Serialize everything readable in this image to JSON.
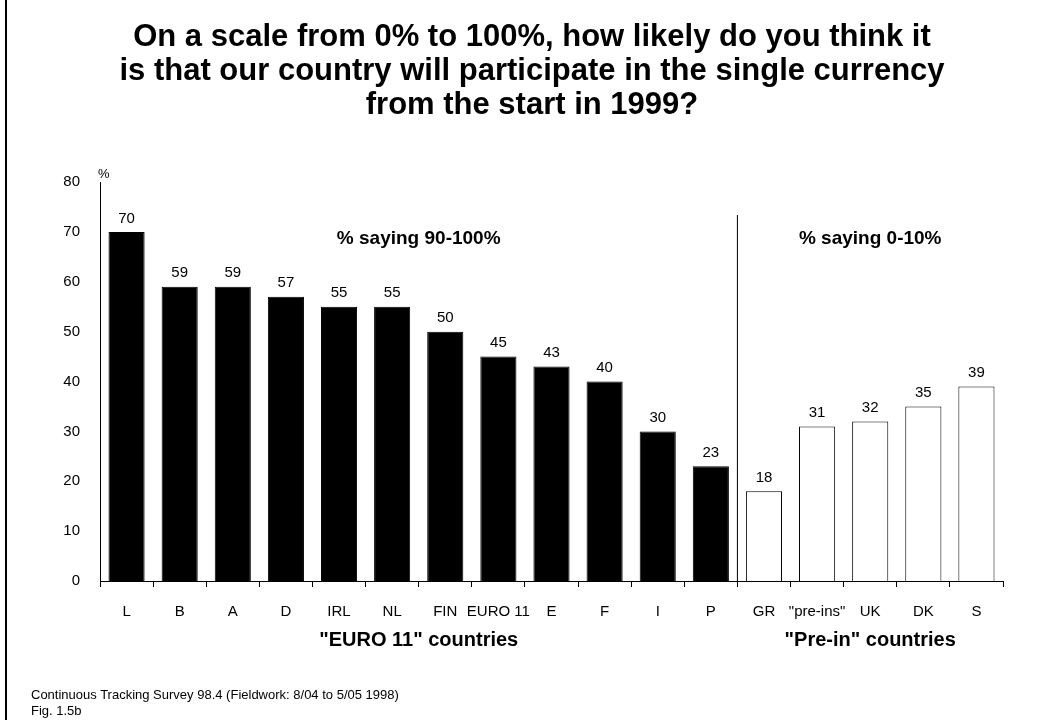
{
  "chart_data": {
    "type": "bar",
    "title": "On a scale from 0% to 100%, how likely do you think it is that our country will participate in the single currency from the start in 1999?",
    "ylabel": "%",
    "categories": [
      "L",
      "B",
      "A",
      "D",
      "IRL",
      "NL",
      "FIN",
      "EURO 11",
      "E",
      "F",
      "I",
      "P",
      "GR",
      "\"pre-ins\"",
      "UK",
      "DK",
      "S"
    ],
    "values": [
      70,
      59,
      59,
      57,
      55,
      55,
      50,
      45,
      43,
      40,
      30,
      23,
      18,
      31,
      32,
      35,
      39
    ],
    "colors": [
      "#000000",
      "#000000",
      "#000000",
      "#000000",
      "#000000",
      "#000000",
      "#000000",
      "#000000",
      "#000000",
      "#000000",
      "#000000",
      "#000000",
      "#ffffff",
      "#ffffff",
      "#ffffff",
      "#ffffff",
      "#ffffff"
    ],
    "ylim": [
      0,
      80
    ],
    "yticks": [
      0,
      10,
      20,
      30,
      40,
      50,
      60,
      70,
      80
    ],
    "data_labels": true,
    "annotations": [
      "% saying 90-100%",
      "% saying 0-10%",
      "\"EURO 11\" countries",
      "\"Pre-in\" countries",
      "Continuous Tracking Survey 98.4 (Fieldwork: 8/04 to 5/05 1998)",
      "Fig. 1.5b"
    ]
  }
}
